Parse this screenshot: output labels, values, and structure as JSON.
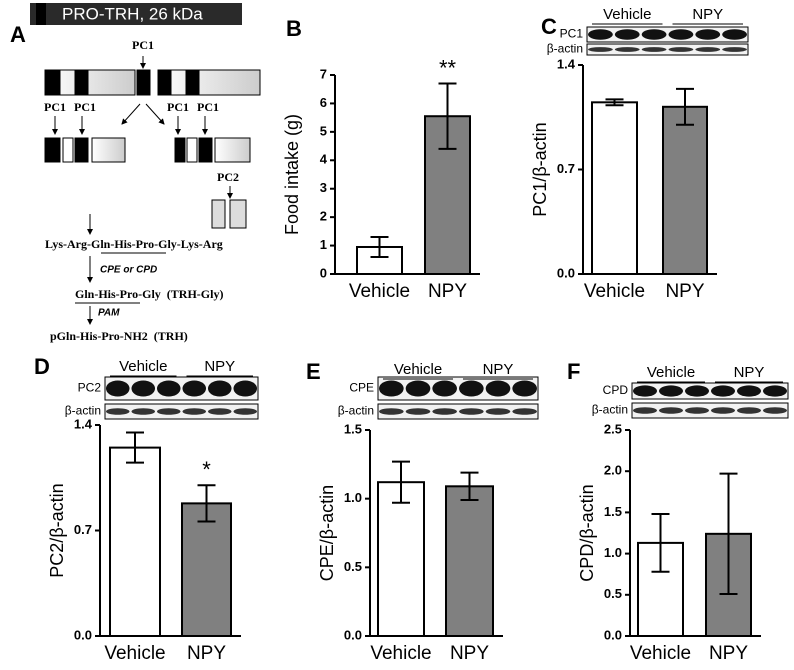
{
  "diagram": {
    "panel": "A",
    "header": "PRO-TRH, 26 kDa",
    "cleavage": "PC1",
    "enzymes_left": [
      "PC1",
      "PC1"
    ],
    "enzymes_right": [
      "PC1",
      "PC1"
    ],
    "enzyme_lower": "PC2",
    "peptide": "Lys-Arg-Gln-His-Pro-Gly-Lys-Arg",
    "step1": "CPE or CPD",
    "product1": "Gln-His-Pro-Gly  (TRH-Gly)",
    "step2": "PAM",
    "product2": "pGln-His-Pro-NH2  (TRH)"
  },
  "chart_data": [
    {
      "type": "bar",
      "panel": "B",
      "ylabel": "Food intake (g)",
      "categories": [
        "Vehicle",
        "NPY"
      ],
      "values": [
        0.95,
        5.55
      ],
      "errors": [
        0.35,
        1.15
      ],
      "colors": [
        "#ffffff",
        "#808080"
      ],
      "significance": [
        null,
        "**"
      ],
      "ylim": [
        0,
        7
      ],
      "yticks": [
        0,
        1,
        2,
        3,
        4,
        5,
        6,
        7
      ]
    },
    {
      "type": "bar",
      "panel": "C",
      "ylabel": "PC1/β-actin",
      "categories": [
        "Vehicle",
        "NPY"
      ],
      "values": [
        1.15,
        1.12
      ],
      "errors": [
        0.02,
        0.12
      ],
      "colors": [
        "#ffffff",
        "#808080"
      ],
      "blot": {
        "groups": [
          "Vehicle",
          "NPY"
        ],
        "rows": [
          "PC1",
          "β-actin"
        ]
      },
      "ylim": [
        0,
        1.4
      ],
      "yticks": [
        {
          "value": 0,
          "label": "0.0"
        },
        0.7,
        1.4
      ]
    },
    {
      "type": "bar",
      "panel": "D",
      "ylabel": "PC2/β-actin",
      "categories": [
        "Vehicle",
        "NPY"
      ],
      "values": [
        1.25,
        0.88
      ],
      "errors": [
        0.1,
        0.12
      ],
      "colors": [
        "#ffffff",
        "#808080"
      ],
      "significance": [
        null,
        "*"
      ],
      "blot": {
        "groups": [
          "Vehicle",
          "NPY"
        ],
        "rows": [
          "PC2",
          "β-actin"
        ]
      },
      "ylim": [
        0,
        1.4
      ],
      "yticks": [
        {
          "value": 0,
          "label": "0.0"
        },
        0.7,
        1.4
      ]
    },
    {
      "type": "bar",
      "panel": "E",
      "ylabel": "CPE/β-actin",
      "categories": [
        "Vehicle",
        "NPY"
      ],
      "values": [
        1.12,
        1.09
      ],
      "errors": [
        0.15,
        0.1
      ],
      "colors": [
        "#ffffff",
        "#808080"
      ],
      "blot": {
        "groups": [
          "Vehicle",
          "NPY"
        ],
        "rows": [
          "CPE",
          "β-actin"
        ]
      },
      "ylim": [
        0,
        1.5
      ],
      "yticks": [
        {
          "value": 0,
          "label": "0.0"
        },
        0.5,
        {
          "value": 1,
          "label": "1.0"
        },
        1.5
      ]
    },
    {
      "type": "bar",
      "panel": "F",
      "ylabel": "CPD/β-actin",
      "categories": [
        "Vehicle",
        "NPY"
      ],
      "values": [
        1.13,
        1.24
      ],
      "errors": [
        0.35,
        0.73
      ],
      "colors": [
        "#ffffff",
        "#808080"
      ],
      "blot": {
        "groups": [
          "Vehicle",
          "NPY"
        ],
        "rows": [
          "CPD",
          "β-actin"
        ]
      },
      "ylim": [
        0,
        2.5
      ],
      "yticks": [
        {
          "value": 0,
          "label": "0.0"
        },
        0.5,
        {
          "value": 1,
          "label": "1.0"
        },
        1.5,
        {
          "value": 2,
          "label": "2.0"
        },
        2.5
      ]
    }
  ]
}
